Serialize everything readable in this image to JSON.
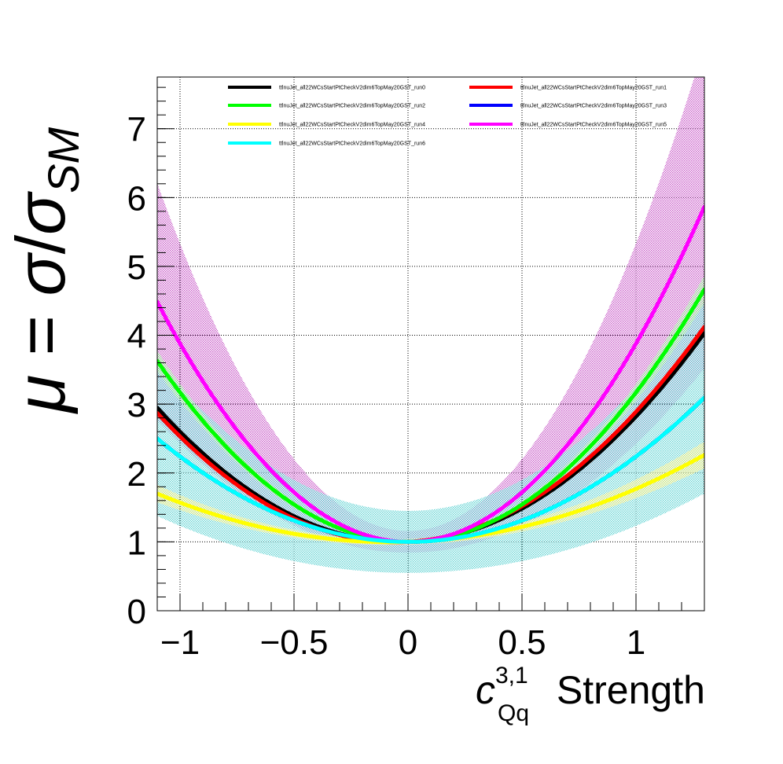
{
  "chart_data": {
    "type": "line",
    "xlabel": {
      "base": "c",
      "sup": "3,1",
      "sub": "Qq",
      "rest": " Strength"
    },
    "ylabel": {
      "mu": "μ",
      "eq": " = ",
      "sigma": "σ",
      "slash": "/",
      "sigma2": "σ",
      "sub": "SM"
    },
    "xlim": [
      -1.1,
      1.3
    ],
    "ylim": [
      0,
      7.75
    ],
    "xticks": [
      -1,
      -0.5,
      0,
      0.5,
      1
    ],
    "xtick_labels": [
      "−1",
      "−0.5",
      "0",
      "0.5",
      "1"
    ],
    "yticks": [
      0,
      1,
      2,
      3,
      4,
      5,
      6,
      7
    ],
    "ytick_labels": [
      "0",
      "1",
      "2",
      "3",
      "4",
      "5",
      "6",
      "7"
    ],
    "grid": true,
    "legend_position": "top",
    "series": [
      {
        "name": "ttlnuJet_all22WCsStartPtCheckV2dim6TopMay20GST_run0",
        "color": "#000000",
        "a": 1.71,
        "b": 0.11,
        "band": 0.0
      },
      {
        "name": "ttlnuJet_all22WCsStartPtCheckV2dim6TopMay20GST_run1",
        "color": "#ff0000",
        "a": 1.71,
        "b": 0.18,
        "band": 0.0
      },
      {
        "name": "ttlnuJet_all22WCsStartPtCheckV2dim6TopMay20GST_run2",
        "color": "#00ff00",
        "a": 2.17,
        "b": 0.0,
        "band": 0.05
      },
      {
        "name": "ttlnuJet_all22WCsStartPtCheckV2dim6TopMay20GST_run3",
        "color": "#0000ff",
        "a": 1.24,
        "b": 0.0,
        "band": 0.0
      },
      {
        "name": "ttlnuJet_all22WCsStartPtCheckV2dim6TopMay20GST_run4",
        "color": "#ffff00",
        "a": 0.67,
        "b": 0.1,
        "band": 0.12
      },
      {
        "name": "ttlnuJet_all22WCsStartPtCheckV2dim6TopMay20GST_run5",
        "color": "#ff00ff",
        "a": 2.88,
        "b": 0.0,
        "band": 0.45
      },
      {
        "name": "ttlnuJet_all22WCsStartPtCheckV2dim6TopMay20GST_run6",
        "color": "#00ffff",
        "a": 1.24,
        "b": 0.0,
        "band": 0.45
      }
    ]
  }
}
